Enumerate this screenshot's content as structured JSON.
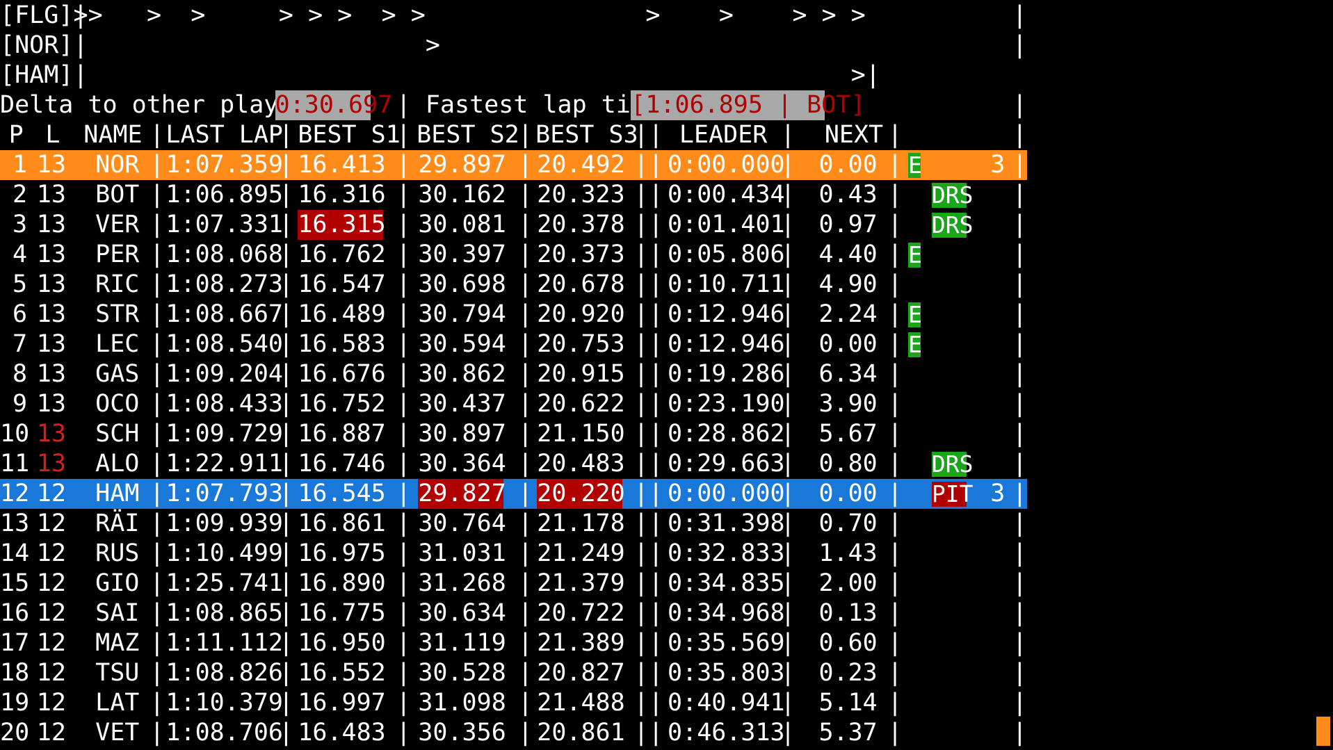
{
  "track": {
    "rows": [
      {
        "label": "[FLG]|",
        "markers": [
          {
            "col": 5,
            "text": ">>"
          },
          {
            "col": 10,
            "text": ">"
          },
          {
            "col": 13,
            "text": ">"
          },
          {
            "col": 19,
            "text": ">"
          },
          {
            "col": 21,
            "text": ">"
          },
          {
            "col": 23,
            "text": ">"
          },
          {
            "col": 26,
            "text": ">"
          },
          {
            "col": 28,
            "text": ">"
          },
          {
            "col": 44,
            "text": ">"
          },
          {
            "col": 49,
            "text": ">"
          },
          {
            "col": 54,
            "text": ">"
          },
          {
            "col": 56,
            "text": ">"
          },
          {
            "col": 58,
            "text": ">"
          }
        ],
        "end": "|"
      },
      {
        "label": "[NOR]|",
        "markers": [
          {
            "col": 29,
            "text": ">"
          }
        ],
        "end": "|"
      },
      {
        "label": "[HAM]|",
        "markers": [
          {
            "col": 58,
            "text": ">|"
          }
        ],
        "end": ""
      }
    ]
  },
  "info": {
    "delta_label": "Delta to other player:",
    "delta_value": "0:30.697",
    "sep": "|",
    "fastest_label": "Fastest lap time",
    "fastest_value": "[1:06.895 | BOT]",
    "end": "|"
  },
  "table": {
    "headers": {
      "p": "P",
      "l": "L",
      "name": "NAME",
      "last": "LAST LAP",
      "s1": "BEST S1",
      "s2": "BEST S2",
      "s3": "BEST S3",
      "leader": "LEADER",
      "next": "NEXT"
    },
    "rows": [
      {
        "p": "1",
        "l": "13",
        "name": "NOR",
        "last": "1:07.359",
        "s1": "16.413",
        "s2": "29.897",
        "s3": "20.492",
        "leader": "0:00.000",
        "next": "0.00",
        "ers": "E",
        "drs": "",
        "lap": "3",
        "highlight": "orange"
      },
      {
        "p": "2",
        "l": "13",
        "name": "BOT",
        "last": "1:06.895",
        "s1": "16.316",
        "s2": "30.162",
        "s3": "20.323",
        "leader": "0:00.434",
        "next": "0.43",
        "ers": "",
        "drs": "DRS",
        "lap": ""
      },
      {
        "p": "3",
        "l": "13",
        "name": "VER",
        "last": "1:07.331",
        "s1": "16.315",
        "s2": "30.081",
        "s3": "20.378",
        "leader": "0:01.401",
        "next": "0.97",
        "ers": "",
        "drs": "DRS",
        "lap": "",
        "best": "s1"
      },
      {
        "p": "4",
        "l": "13",
        "name": "PER",
        "last": "1:08.068",
        "s1": "16.762",
        "s2": "30.397",
        "s3": "20.373",
        "leader": "0:05.806",
        "next": "4.40",
        "ers": "E",
        "drs": "",
        "lap": ""
      },
      {
        "p": "5",
        "l": "13",
        "name": "RIC",
        "last": "1:08.273",
        "s1": "16.547",
        "s2": "30.698",
        "s3": "20.678",
        "leader": "0:10.711",
        "next": "4.90",
        "ers": "",
        "drs": "",
        "lap": ""
      },
      {
        "p": "6",
        "l": "13",
        "name": "STR",
        "last": "1:08.667",
        "s1": "16.489",
        "s2": "30.794",
        "s3": "20.920",
        "leader": "0:12.946",
        "next": "2.24",
        "ers": "E",
        "drs": "",
        "lap": ""
      },
      {
        "p": "7",
        "l": "13",
        "name": "LEC",
        "last": "1:08.540",
        "s1": "16.583",
        "s2": "30.594",
        "s3": "20.753",
        "leader": "0:12.946",
        "next": "0.00",
        "ers": "E",
        "drs": "",
        "lap": ""
      },
      {
        "p": "8",
        "l": "13",
        "name": "GAS",
        "last": "1:09.204",
        "s1": "16.676",
        "s2": "30.862",
        "s3": "20.915",
        "leader": "0:19.286",
        "next": "6.34",
        "ers": "",
        "drs": "",
        "lap": ""
      },
      {
        "p": "9",
        "l": "13",
        "name": "OCO",
        "last": "1:08.433",
        "s1": "16.752",
        "s2": "30.437",
        "s3": "20.622",
        "leader": "0:23.190",
        "next": "3.90",
        "ers": "",
        "drs": "",
        "lap": ""
      },
      {
        "p": "10",
        "l": "13",
        "name": "SCH",
        "last": "1:09.729",
        "s1": "16.887",
        "s2": "30.897",
        "s3": "21.150",
        "leader": "0:28.862",
        "next": "5.67",
        "ers": "",
        "drs": "",
        "lap": "",
        "lap_red": true
      },
      {
        "p": "11",
        "l": "13",
        "name": "ALO",
        "last": "1:22.911",
        "s1": "16.746",
        "s2": "30.364",
        "s3": "20.483",
        "leader": "0:29.663",
        "next": "0.80",
        "ers": "",
        "drs": "DRS",
        "lap": "",
        "lap_red": true
      },
      {
        "p": "12",
        "l": "12",
        "name": "HAM",
        "last": "1:07.793",
        "s1": "16.545",
        "s2": "29.827",
        "s3": "20.220",
        "leader": "0:00.000",
        "next": "0.00",
        "ers": "",
        "drs": "PIT",
        "lap": "3",
        "highlight": "blue",
        "best": "s2s3"
      },
      {
        "p": "13",
        "l": "12",
        "name": "RÄI",
        "last": "1:09.939",
        "s1": "16.861",
        "s2": "30.764",
        "s3": "21.178",
        "leader": "0:31.398",
        "next": "0.70",
        "ers": "",
        "drs": "",
        "lap": ""
      },
      {
        "p": "14",
        "l": "12",
        "name": "RUS",
        "last": "1:10.499",
        "s1": "16.975",
        "s2": "31.031",
        "s3": "21.249",
        "leader": "0:32.833",
        "next": "1.43",
        "ers": "",
        "drs": "",
        "lap": ""
      },
      {
        "p": "15",
        "l": "12",
        "name": "GIO",
        "last": "1:25.741",
        "s1": "16.890",
        "s2": "31.268",
        "s3": "21.379",
        "leader": "0:34.835",
        "next": "2.00",
        "ers": "",
        "drs": "",
        "lap": ""
      },
      {
        "p": "16",
        "l": "12",
        "name": "SAI",
        "last": "1:08.865",
        "s1": "16.775",
        "s2": "30.634",
        "s3": "20.722",
        "leader": "0:34.968",
        "next": "0.13",
        "ers": "",
        "drs": "",
        "lap": ""
      },
      {
        "p": "17",
        "l": "12",
        "name": "MAZ",
        "last": "1:11.112",
        "s1": "16.950",
        "s2": "31.119",
        "s3": "21.389",
        "leader": "0:35.569",
        "next": "0.60",
        "ers": "",
        "drs": "",
        "lap": ""
      },
      {
        "p": "18",
        "l": "12",
        "name": "TSU",
        "last": "1:08.826",
        "s1": "16.552",
        "s2": "30.528",
        "s3": "20.827",
        "leader": "0:35.803",
        "next": "0.23",
        "ers": "",
        "drs": "",
        "lap": ""
      },
      {
        "p": "19",
        "l": "12",
        "name": "LAT",
        "last": "1:10.379",
        "s1": "16.997",
        "s2": "31.098",
        "s3": "21.488",
        "leader": "0:40.941",
        "next": "5.14",
        "ers": "",
        "drs": "",
        "lap": ""
      },
      {
        "p": "20",
        "l": "12",
        "name": "VET",
        "last": "1:08.706",
        "s1": "16.483",
        "s2": "30.356",
        "s3": "20.861",
        "leader": "0:46.313",
        "next": "5.37",
        "ers": "",
        "drs": "",
        "lap": ""
      }
    ]
  },
  "colors": {
    "orange": "#ff8c1a",
    "blue": "#1a78d8",
    "green": "#1aa51a",
    "red": "#b00000",
    "grey": "#a8a8a8",
    "lap_red": "#d02020"
  }
}
